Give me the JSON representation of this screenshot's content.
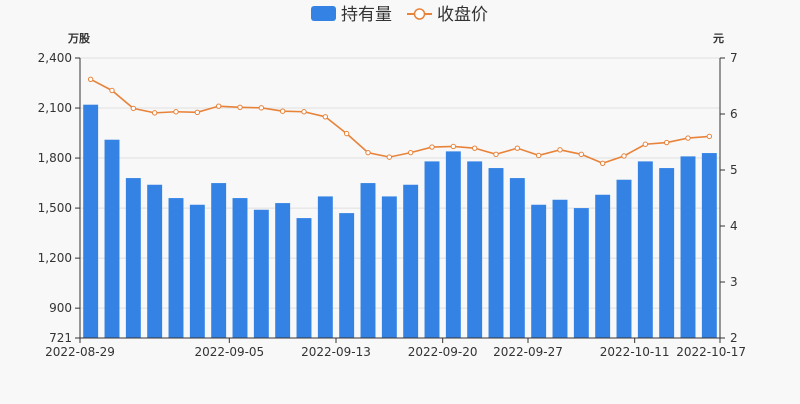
{
  "chart_data": {
    "type": "bar",
    "legend": {
      "position": "top-center",
      "items": [
        {
          "label": "持有量",
          "kind": "bar",
          "color": "#3483e4"
        },
        {
          "label": "收盘价",
          "kind": "line",
          "color": "#e8833a"
        }
      ]
    },
    "left_axis": {
      "unit": "万股",
      "ticks": [
        "721",
        "900",
        "1,200",
        "1,500",
        "1,800",
        "2,100",
        "2,400"
      ],
      "range": [
        721,
        2400
      ]
    },
    "right_axis": {
      "unit": "元",
      "ticks": [
        "2",
        "3",
        "4",
        "5",
        "6",
        "7"
      ],
      "range": [
        2,
        7
      ]
    },
    "x_tick_labels": [
      "2022-08-29",
      "2022-09-05",
      "2022-09-13",
      "2022-09-20",
      "2022-09-27",
      "2022-10-11",
      "2022-10-17"
    ],
    "x_tick_indices": [
      0,
      7,
      12,
      17,
      21,
      26,
      30
    ],
    "grid": "horizontal",
    "series": [
      {
        "name": "持有量",
        "axis": "left",
        "type": "bar",
        "color": "#3483e4",
        "values": [
          2120,
          1910,
          1680,
          1640,
          1560,
          1520,
          1650,
          1560,
          1490,
          1530,
          1440,
          1570,
          1470,
          1650,
          1570,
          1640,
          1780,
          1840,
          1780,
          1740,
          1680,
          1520,
          1550,
          1500,
          1580,
          1670,
          1780,
          1740,
          1810,
          1830
        ]
      },
      {
        "name": "收盘价",
        "axis": "right",
        "type": "line",
        "color": "#e8833a",
        "values": [
          6.62,
          6.42,
          6.1,
          6.02,
          6.04,
          6.03,
          6.14,
          6.12,
          6.11,
          6.05,
          6.04,
          5.95,
          5.65,
          5.31,
          5.23,
          5.31,
          5.41,
          5.42,
          5.39,
          5.28,
          5.39,
          5.26,
          5.36,
          5.28,
          5.12,
          5.25,
          5.46,
          5.49,
          5.57,
          5.6
        ]
      }
    ]
  }
}
